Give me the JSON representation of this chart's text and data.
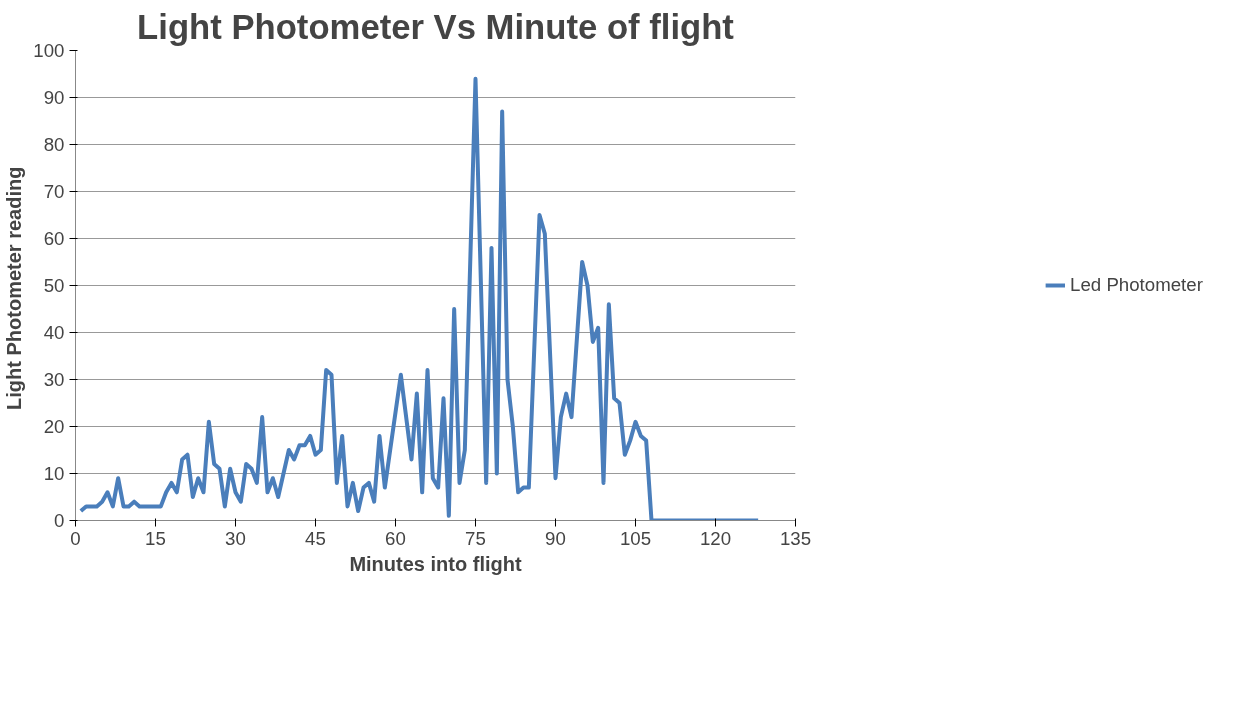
{
  "chart_data": {
    "type": "line",
    "title": "Light Photometer Vs Minute of flight",
    "xlabel": "Minutes into flight",
    "ylabel": "Light  Photometer reading",
    "x": [
      1,
      2,
      4,
      5,
      6,
      7,
      8,
      9,
      10,
      11,
      12,
      16,
      17,
      18,
      19,
      20,
      21,
      22,
      23,
      24,
      25,
      26,
      27,
      28,
      29,
      30,
      31,
      32,
      33,
      34,
      35,
      36,
      37,
      38,
      40,
      41,
      42,
      43,
      44,
      45,
      46,
      47,
      48,
      49,
      50,
      51,
      52,
      53,
      54,
      55,
      56,
      57,
      58,
      61,
      63,
      64,
      65,
      66,
      67,
      68,
      69,
      70,
      71,
      72,
      73,
      75,
      77,
      78,
      79,
      80,
      81,
      82,
      83,
      84,
      85,
      87,
      88,
      90,
      91,
      92,
      93,
      95,
      96,
      97,
      98,
      99,
      100,
      101,
      102,
      103,
      104,
      105,
      106,
      107,
      108,
      128
    ],
    "series": [
      {
        "name": "Led Photometer",
        "color": "#4a7ebb",
        "values": [
          2,
          3,
          3,
          4,
          6,
          3,
          9,
          3,
          3,
          4,
          3,
          3,
          6,
          8,
          6,
          13,
          14,
          5,
          9,
          6,
          21,
          12,
          11,
          3,
          11,
          6,
          4,
          12,
          11,
          8,
          22,
          6,
          9,
          5,
          15,
          13,
          16,
          16,
          18,
          14,
          15,
          32,
          31,
          8,
          18,
          3,
          8,
          2,
          7,
          8,
          4,
          18,
          7,
          31,
          13,
          27,
          6,
          32,
          9,
          7,
          26,
          1,
          45,
          8,
          15,
          94,
          8,
          58,
          10,
          87,
          30,
          20,
          6,
          7,
          7,
          65,
          61,
          9,
          22,
          27,
          22,
          55,
          50,
          38,
          41,
          8,
          46,
          26,
          25,
          14,
          17,
          21,
          18,
          17,
          0,
          0
        ]
      }
    ],
    "xlim": [
      0,
      135
    ],
    "xticks": [
      0,
      15,
      30,
      45,
      60,
      75,
      90,
      105,
      120,
      135
    ],
    "ylim": [
      0,
      100
    ],
    "yticks": [
      0,
      10,
      20,
      30,
      40,
      50,
      60,
      70,
      80,
      90,
      100
    ],
    "grid": "y",
    "legend": "right",
    "marker": "none",
    "line_style": "solid"
  }
}
